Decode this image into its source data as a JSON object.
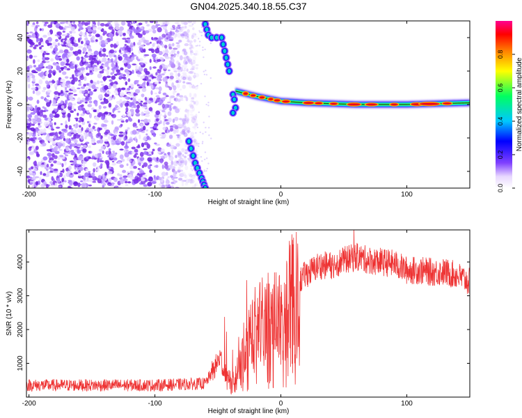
{
  "title": "GN04.2025.340.18.55.C37",
  "chart_data": [
    {
      "type": "heatmap",
      "name": "spectrogram",
      "xlabel": "Height of straight line (km)",
      "ylabel": "Frequency (Hz)",
      "xlim": [
        -202,
        150
      ],
      "ylim": [
        -50,
        50
      ],
      "xticks": [
        -200,
        -100,
        0,
        100
      ],
      "yticks": [
        -40,
        -20,
        0,
        20,
        40
      ],
      "colorbar": {
        "label": "Normalized spectral amplitude",
        "range": [
          0,
          1
        ],
        "ticks": [
          0.0,
          0.2,
          0.4,
          0.6,
          0.8
        ]
      },
      "features": {
        "noise_region_km": [
          -202,
          -72
        ],
        "gap_region_km": [
          -72,
          -35
        ],
        "descending_track": [
          [
            -73,
            -22
          ],
          [
            -68,
            -35
          ],
          [
            -63,
            -44
          ],
          [
            -60,
            -50
          ]
        ],
        "upper_track": [
          [
            -60,
            48
          ],
          [
            -57,
            40
          ],
          [
            -47,
            40
          ],
          [
            -44,
            30
          ],
          [
            -41,
            20
          ]
        ],
        "carrier_km": [
          -36,
          150
        ],
        "carrier_freq_hz": [
          [
            -36,
            8
          ],
          [
            -20,
            5
          ],
          [
            0,
            2
          ],
          [
            20,
            1
          ],
          [
            60,
            0
          ],
          [
            100,
            0
          ],
          [
            150,
            1
          ]
        ]
      }
    },
    {
      "type": "line",
      "name": "snr",
      "xlabel": "Height of straight line (km)",
      "ylabel": "SNR (10 * v/v)",
      "xlim": [
        -202,
        150
      ],
      "ylim": [
        0,
        4950
      ],
      "xticks": [
        -200,
        -100,
        0,
        100
      ],
      "yticks": [
        1000,
        2000,
        3000,
        4000
      ],
      "color": "#ee3333",
      "envelope_x": [
        -202,
        -100,
        -60,
        -52,
        -48,
        -45,
        -42,
        -36,
        -30,
        -25,
        -20,
        -15,
        -10,
        -5,
        0,
        5,
        10,
        15,
        20,
        25,
        30,
        40,
        50,
        60,
        70,
        80,
        90,
        100,
        110,
        120,
        130,
        140,
        150
      ],
      "envelope_y": [
        350,
        350,
        400,
        900,
        1200,
        700,
        450,
        600,
        1300,
        1900,
        2200,
        2300,
        2400,
        2500,
        2650,
        2900,
        3200,
        3450,
        3650,
        3750,
        3900,
        3900,
        4050,
        4150,
        4050,
        4000,
        3950,
        3750,
        3750,
        3700,
        3700,
        3600,
        3400
      ]
    }
  ]
}
